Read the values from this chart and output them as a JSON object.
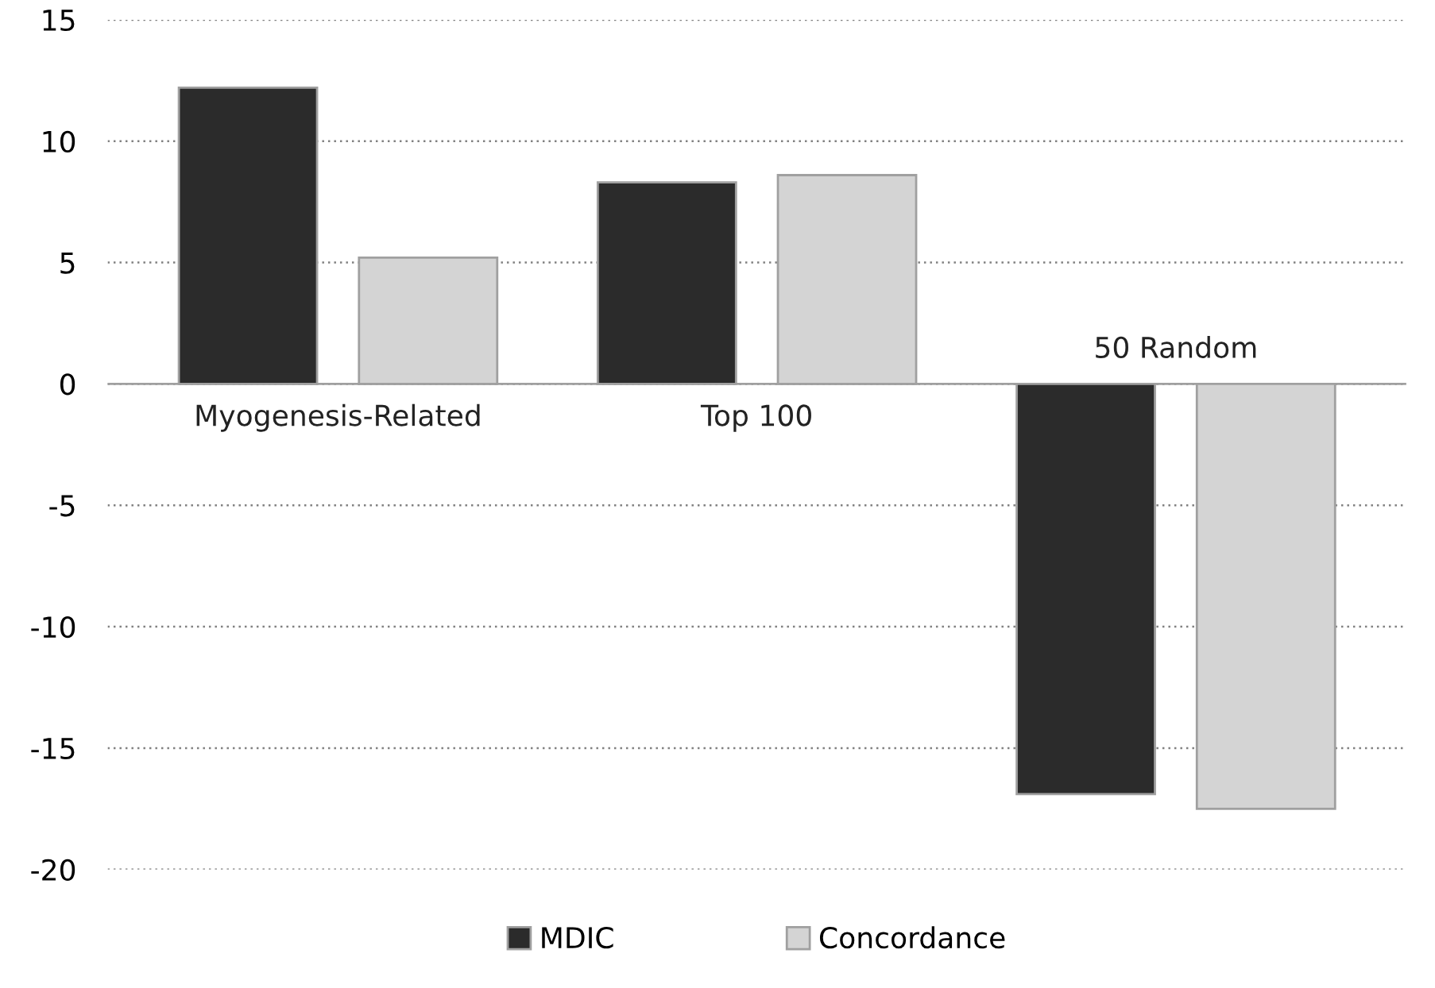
{
  "chart_data": {
    "type": "bar",
    "categories": [
      "Myogenesis-Related",
      "Top 100",
      "50 Random"
    ],
    "series": [
      {
        "name": "MDIC",
        "color": "#2b2b2b",
        "values": [
          12.2,
          8.3,
          -16.9
        ]
      },
      {
        "name": "Concordance",
        "color": "#d4d4d4",
        "values": [
          5.2,
          8.6,
          -17.5
        ]
      }
    ],
    "ylim": [
      -20,
      15
    ],
    "yticks": [
      -20,
      -15,
      -10,
      -5,
      0,
      5,
      10,
      15
    ],
    "grid": "y",
    "legend": "bottom"
  }
}
